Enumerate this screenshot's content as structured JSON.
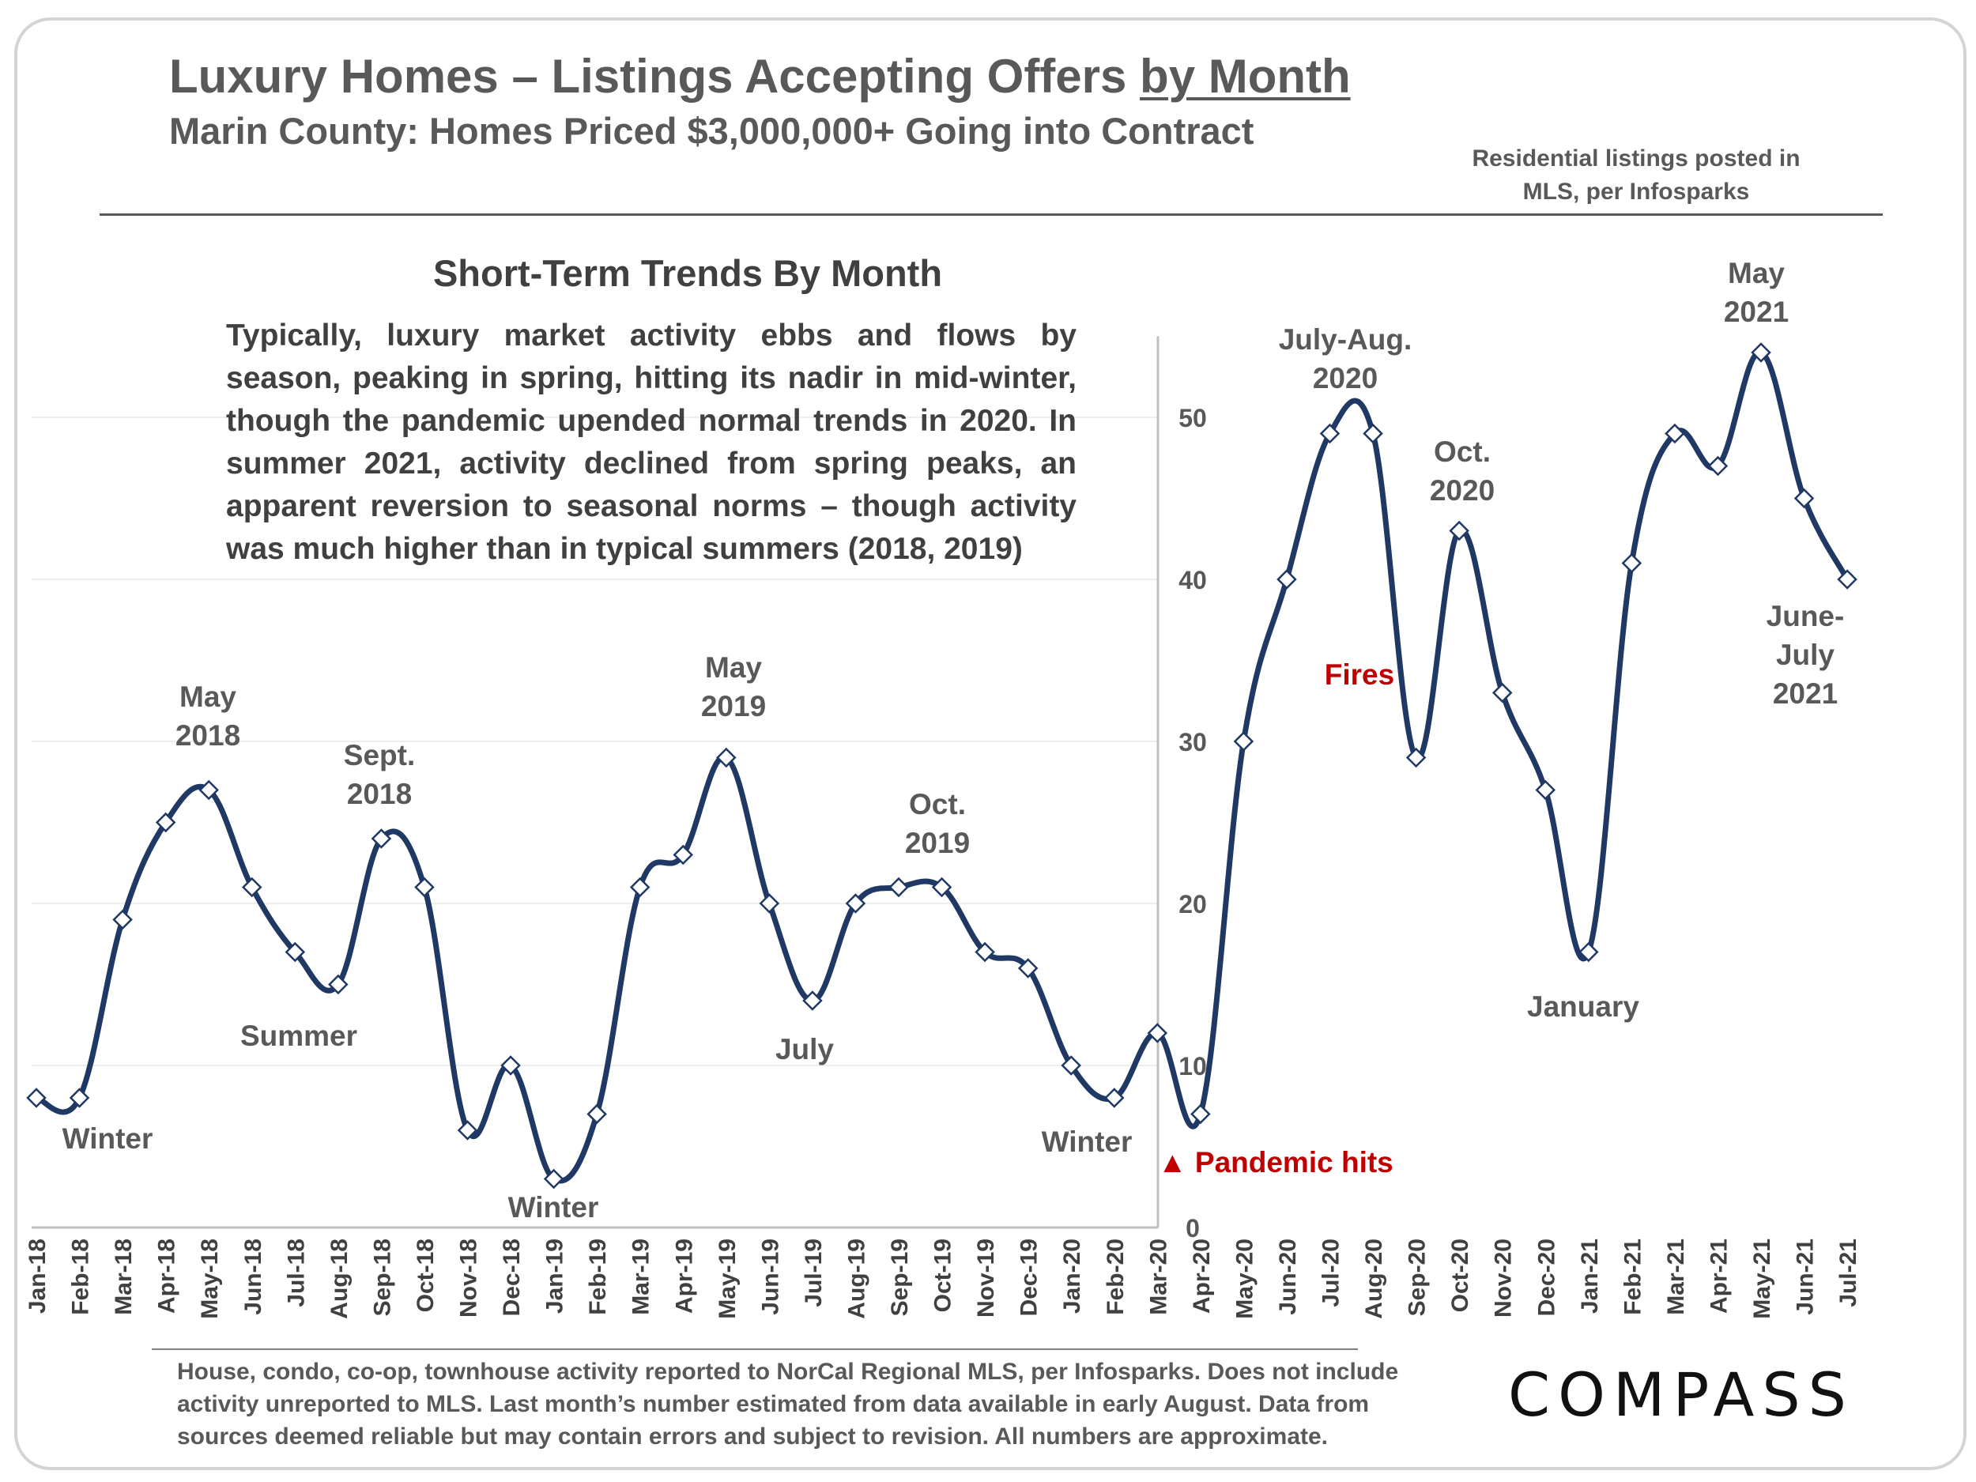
{
  "header": {
    "title_main": "Luxury Homes – Listings Accepting Offers ",
    "title_underlined": "by Month",
    "subtitle": "Marin County: Homes Priced $3,000,000+ Going into Contract",
    "source_line1": "Residential listings posted in",
    "source_line2": "MLS, per Infosparks"
  },
  "trends": {
    "title": "Short-Term Trends By Month",
    "body": "Typically, luxury market activity ebbs and flows by season, peaking in spring, hitting its nadir in mid-winter, though the pandemic upended normal trends in 2020. In summer 2021, activity declined from spring peaks, an apparent reversion to seasonal norms – though activity was much higher than in typical summers (2018, 2019)"
  },
  "footer": {
    "note_line1": "House, condo, co-op, townhouse activity reported to NorCal Regional MLS, per Infosparks. Does not include",
    "note_line2": "activity unreported to MLS. Last month’s number estimated from data available in early August. Data from",
    "note_line3": "sources deemed reliable but may contain errors and subject to revision.  All numbers are approximate.",
    "logo": "COMPASS"
  },
  "chart_data": {
    "type": "line",
    "categories": [
      "Jan-18",
      "Feb-18",
      "Mar-18",
      "Apr-18",
      "May-18",
      "Jun-18",
      "Jul-18",
      "Aug-18",
      "Sep-18",
      "Oct-18",
      "Nov-18",
      "Dec-18",
      "Jan-19",
      "Feb-19",
      "Mar-19",
      "Apr-19",
      "May-19",
      "Jun-19",
      "Jul-19",
      "Aug-19",
      "Sep-19",
      "Oct-19",
      "Nov-19",
      "Dec-19",
      "Jan-20",
      "Feb-20",
      "Mar-20",
      "Apr-20",
      "May-20",
      "Jun-20",
      "Jul-20",
      "Aug-20",
      "Sep-20",
      "Oct-20",
      "Nov-20",
      "Dec-20",
      "Jan-21",
      "Feb-21",
      "Mar-21",
      "Apr-21",
      "May-21",
      "Jun-21",
      "Jul-21"
    ],
    "values": [
      8,
      8,
      19,
      25,
      27,
      21,
      17,
      15,
      24,
      21,
      6,
      10,
      3,
      7,
      21,
      23,
      29,
      20,
      14,
      20,
      21,
      21,
      17,
      16,
      10,
      8,
      12,
      7,
      30,
      40,
      49,
      49,
      29,
      43,
      33,
      27,
      17,
      41,
      49,
      47,
      54,
      45,
      40
    ],
    "xlabel": "",
    "ylabel": "",
    "ylim": [
      0,
      55
    ],
    "yticks": [
      0,
      10,
      20,
      30,
      40,
      50
    ],
    "y_axis_side": "right",
    "grid": true,
    "line_color": "#1f3864",
    "marker": "diamond",
    "annotations": [
      {
        "lines": [
          "Winter"
        ],
        "color": "#595959"
      },
      {
        "lines": [
          "May",
          "2018"
        ],
        "color": "#595959"
      },
      {
        "lines": [
          "Summer"
        ],
        "color": "#595959"
      },
      {
        "lines": [
          "Sept.",
          "2018"
        ],
        "color": "#595959"
      },
      {
        "lines": [
          "Winter"
        ],
        "color": "#595959"
      },
      {
        "lines": [
          "May",
          "2019"
        ],
        "color": "#595959"
      },
      {
        "lines": [
          "July"
        ],
        "color": "#595959"
      },
      {
        "lines": [
          "Oct.",
          "2019"
        ],
        "color": "#595959"
      },
      {
        "lines": [
          "Winter"
        ],
        "color": "#595959"
      },
      {
        "lines": [
          "▲ Pandemic hits"
        ],
        "color": "#c00000"
      },
      {
        "lines": [
          "July-Aug.",
          "2020"
        ],
        "color": "#595959"
      },
      {
        "lines": [
          "Fires"
        ],
        "color": "#c00000"
      },
      {
        "lines": [
          "Oct.",
          "2020"
        ],
        "color": "#595959"
      },
      {
        "lines": [
          "January"
        ],
        "color": "#595959"
      },
      {
        "lines": [
          "May",
          "2021"
        ],
        "color": "#595959"
      },
      {
        "lines": [
          "June-",
          "July",
          "2021"
        ],
        "color": "#595959"
      }
    ]
  }
}
